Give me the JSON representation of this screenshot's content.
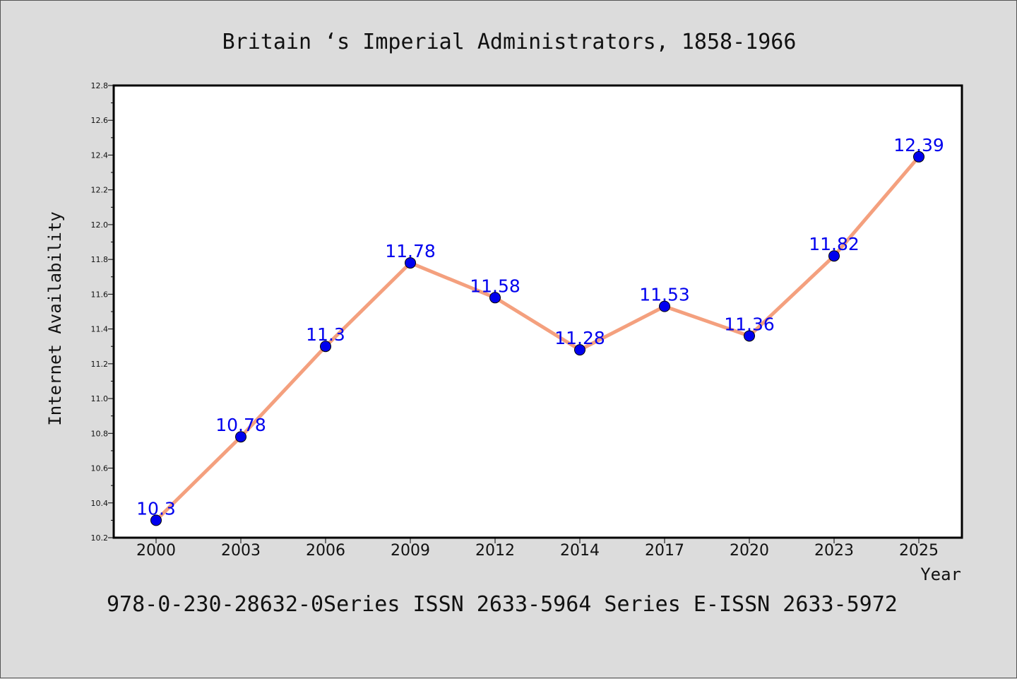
{
  "page": {
    "title": "Britain ‘s Imperial Administrators, 1858-1966",
    "footer": "978-0-230-28632-0Series ISSN 2633-5964 Series E-ISSN 2633-5972"
  },
  "colors": {
    "background": "#dcdcdc",
    "plot_background": "#ffffff",
    "line": "#f4a07e",
    "marker": "#0000ee",
    "data_label": "#0000ee"
  },
  "chart_data": {
    "type": "line",
    "xlabel": "Year",
    "ylabel": "Internet Availability",
    "ylim": [
      10.2,
      12.8
    ],
    "yticks": [
      "10.2",
      "10.4",
      "10.6",
      "10.8",
      "11.0",
      "11.2",
      "11.4",
      "11.6",
      "11.8",
      "12.0",
      "12.2",
      "12.4",
      "12.6",
      "12.8"
    ],
    "categories": [
      "2000",
      "2003",
      "2006",
      "2009",
      "2012",
      "2014",
      "2017",
      "2020",
      "2023",
      "2025"
    ],
    "series": [
      {
        "values": [
          10.3,
          10.78,
          11.3,
          11.78,
          11.58,
          11.28,
          11.53,
          11.36,
          11.82,
          12.39
        ],
        "labels": [
          "10.3",
          "10.78",
          "11.3",
          "11.78",
          "11.58",
          "11.28",
          "11.53",
          "11.36",
          "11.82",
          "12.39"
        ]
      }
    ],
    "grid": false,
    "legend": "none"
  }
}
